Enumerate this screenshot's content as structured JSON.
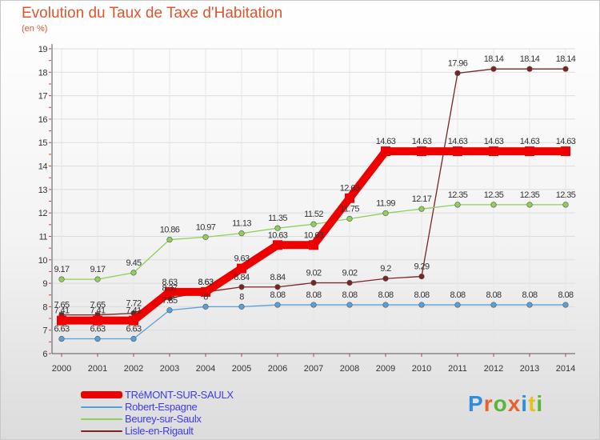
{
  "title": "Evolution du Taux de Taxe d'Habitation",
  "unit_label": "(en %)",
  "brand": {
    "name": "Proxiti",
    "letter_colors": [
      "#2f8de4",
      "#e7632f",
      "#5ab53d",
      "#e7632f",
      "#2f8de4",
      "#e2c31d",
      "#5ab53d"
    ]
  },
  "chart_data": {
    "type": "line",
    "title": "Evolution du Taux de Taxe d'Habitation",
    "ylabel": "(en %)",
    "xlabel": "",
    "ylim": [
      6,
      19
    ],
    "yticks": [
      6,
      7,
      8,
      9,
      10,
      11,
      12,
      13,
      14,
      15,
      16,
      17,
      18,
      19
    ],
    "x": [
      "2000",
      "2001",
      "2002",
      "2003",
      "2004",
      "2005",
      "2006",
      "2007",
      "2008",
      "2009",
      "2010",
      "2011",
      "2012",
      "2013",
      "2014"
    ],
    "grid": true,
    "legend_position": "bottom-left",
    "series": [
      {
        "name": "TRéMONT-SUR-SAULX",
        "color": "#ee0000",
        "style": "thick",
        "values": [
          7.41,
          7.41,
          7.41,
          8.63,
          8.63,
          9.63,
          10.63,
          10.63,
          12.63,
          14.63,
          14.63,
          14.63,
          14.63,
          14.63,
          14.63
        ],
        "labels": [
          "7.41",
          "7.41",
          "7.41",
          "8.63",
          "8.63",
          "9.63",
          "10.63",
          "10.63",
          "12.63",
          "14.63",
          "14.63",
          "14.63",
          "14.63",
          "14.63",
          "14.63"
        ]
      },
      {
        "name": "Robert-Espagne",
        "color": "#5aa0d8",
        "style": "thin",
        "values": [
          6.63,
          6.63,
          6.63,
          7.85,
          8,
          8,
          8.08,
          8.08,
          8.08,
          8.08,
          8.08,
          8.08,
          8.08,
          8.08,
          8.08
        ],
        "labels": [
          "6.63",
          "6.63",
          "6.63",
          "7.85",
          "8",
          "8",
          "8.08",
          "8.08",
          "8.08",
          "8.08",
          "8.08",
          "8.08",
          "8.08",
          "8.08",
          "8.08"
        ]
      },
      {
        "name": "Beurey-sur-Saulx",
        "color": "#8ed05a",
        "style": "thin",
        "values": [
          9.17,
          9.17,
          9.45,
          10.86,
          10.97,
          11.13,
          11.35,
          11.52,
          11.75,
          11.99,
          12.17,
          12.35,
          12.35,
          12.35,
          12.35
        ],
        "labels": [
          "9.17",
          "9.17",
          "9.45",
          "10.86",
          "10.97",
          "11.13",
          "11.35",
          "11.52",
          "11.75",
          "11.99",
          "12.17",
          "12.35",
          "12.35",
          "12.35",
          "12.35"
        ]
      },
      {
        "name": "Lisle-en-Rigault",
        "color": "#7a2424",
        "style": "thin",
        "values": [
          7.65,
          7.65,
          7.72,
          8.37,
          8.63,
          8.84,
          8.84,
          9.02,
          9.02,
          9.2,
          9.29,
          17.96,
          18.14,
          18.14,
          18.14
        ],
        "labels": [
          "7.65",
          "7.65",
          "7.72",
          "8.37",
          "8.63",
          "8.84",
          "8.84",
          "9.02",
          "9.02",
          "9.2",
          "9.29",
          "17.96",
          "18.14",
          "18.14",
          "18.14"
        ]
      }
    ]
  }
}
